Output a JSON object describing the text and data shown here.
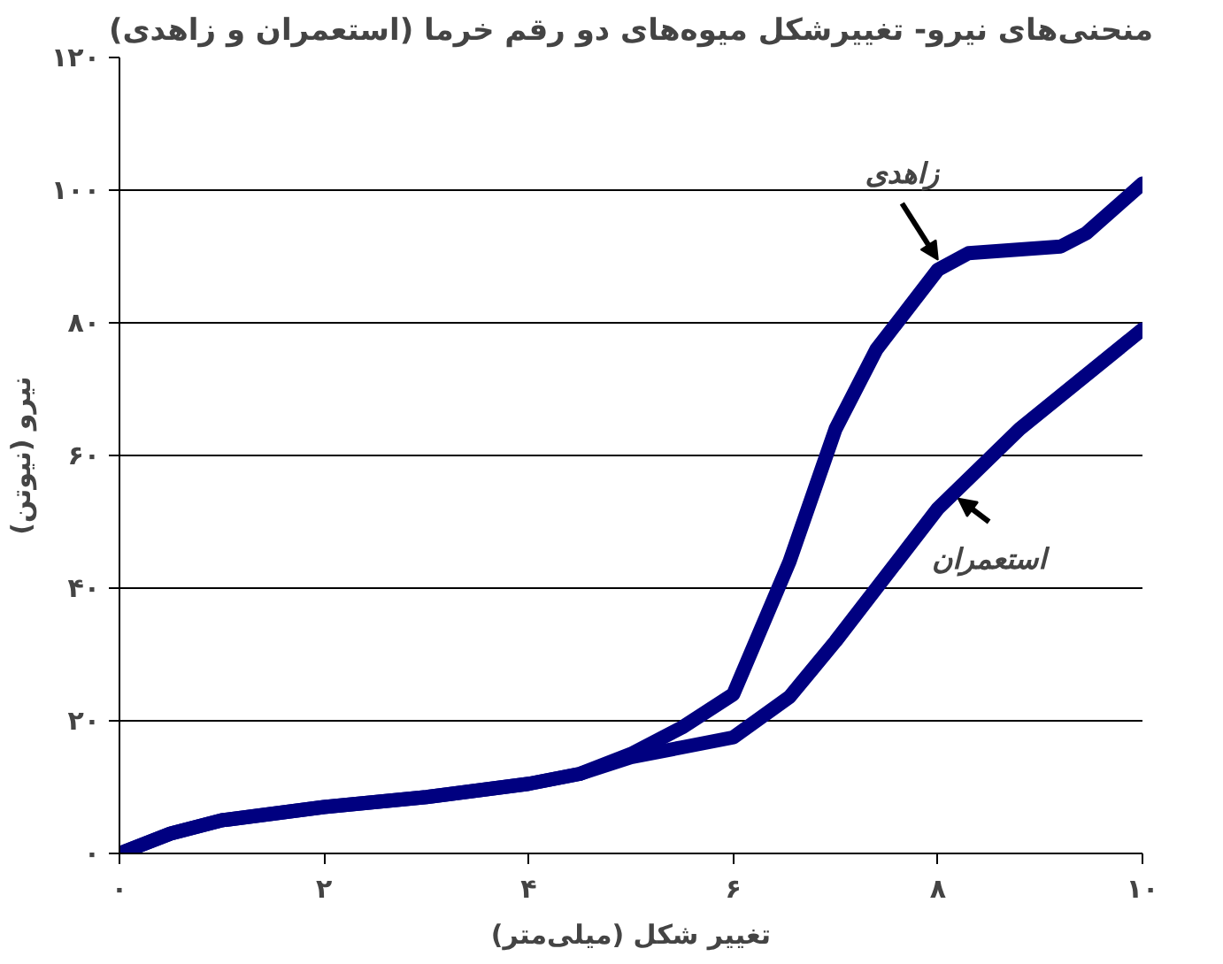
{
  "chart_data": {
    "type": "line",
    "title": "منحنی‌های نیرو- تغییرشکل میوه‌های دو رقم خرما (استعمران و زاهدی)",
    "xlabel": "تغییر شکل (میلی‌متر)",
    "ylabel": "نیرو (نیوتن)",
    "series": [
      {
        "color": "#000080",
        "x": [
          0,
          0.5,
          1,
          2,
          3,
          4,
          4.5,
          5,
          5.5,
          6,
          6.55,
          7,
          7.4,
          8,
          8.3,
          9.2,
          9.45,
          10
        ],
        "values": [
          0,
          3,
          5,
          7,
          8.5,
          10.5,
          12,
          15,
          19,
          24,
          44,
          64,
          76,
          88,
          90.5,
          91.5,
          93.5,
          101
        ]
      },
      {
        "color": "#000080",
        "x": [
          0,
          0.5,
          1,
          2,
          3,
          4,
          4.5,
          5,
          5.5,
          6,
          6.55,
          7,
          8,
          8.8,
          10
        ],
        "values": [
          0,
          3,
          5,
          7,
          8.5,
          10.5,
          12,
          14.5,
          16,
          17.5,
          23.6,
          32,
          52,
          64,
          79
        ]
      }
    ],
    "annotations": [
      {
        "text": "زاهدی",
        "x": 8,
        "y": 88
      },
      {
        "text": "استعمران",
        "x": 8.2,
        "y": 55
      }
    ],
    "xlim": [
      0,
      10
    ],
    "ylim": [
      0,
      120
    ],
    "xticks": [
      {
        "value": 0,
        "label": "۰"
      },
      {
        "value": 2,
        "label": "۲"
      },
      {
        "value": 4,
        "label": "۴"
      },
      {
        "value": 6,
        "label": "۶"
      },
      {
        "value": 8,
        "label": "۸"
      },
      {
        "value": 10,
        "label": "۱۰"
      }
    ],
    "yticks": [
      {
        "value": 0,
        "label": "۰"
      },
      {
        "value": 20,
        "label": "۲۰"
      },
      {
        "value": 40,
        "label": "۴۰"
      },
      {
        "value": 60,
        "label": "۶۰"
      },
      {
        "value": 80,
        "label": "۸۰"
      },
      {
        "value": 100,
        "label": "۱۰۰"
      },
      {
        "value": 120,
        "label": "۱۲۰"
      }
    ],
    "grid": "y",
    "line_style": "solid"
  }
}
